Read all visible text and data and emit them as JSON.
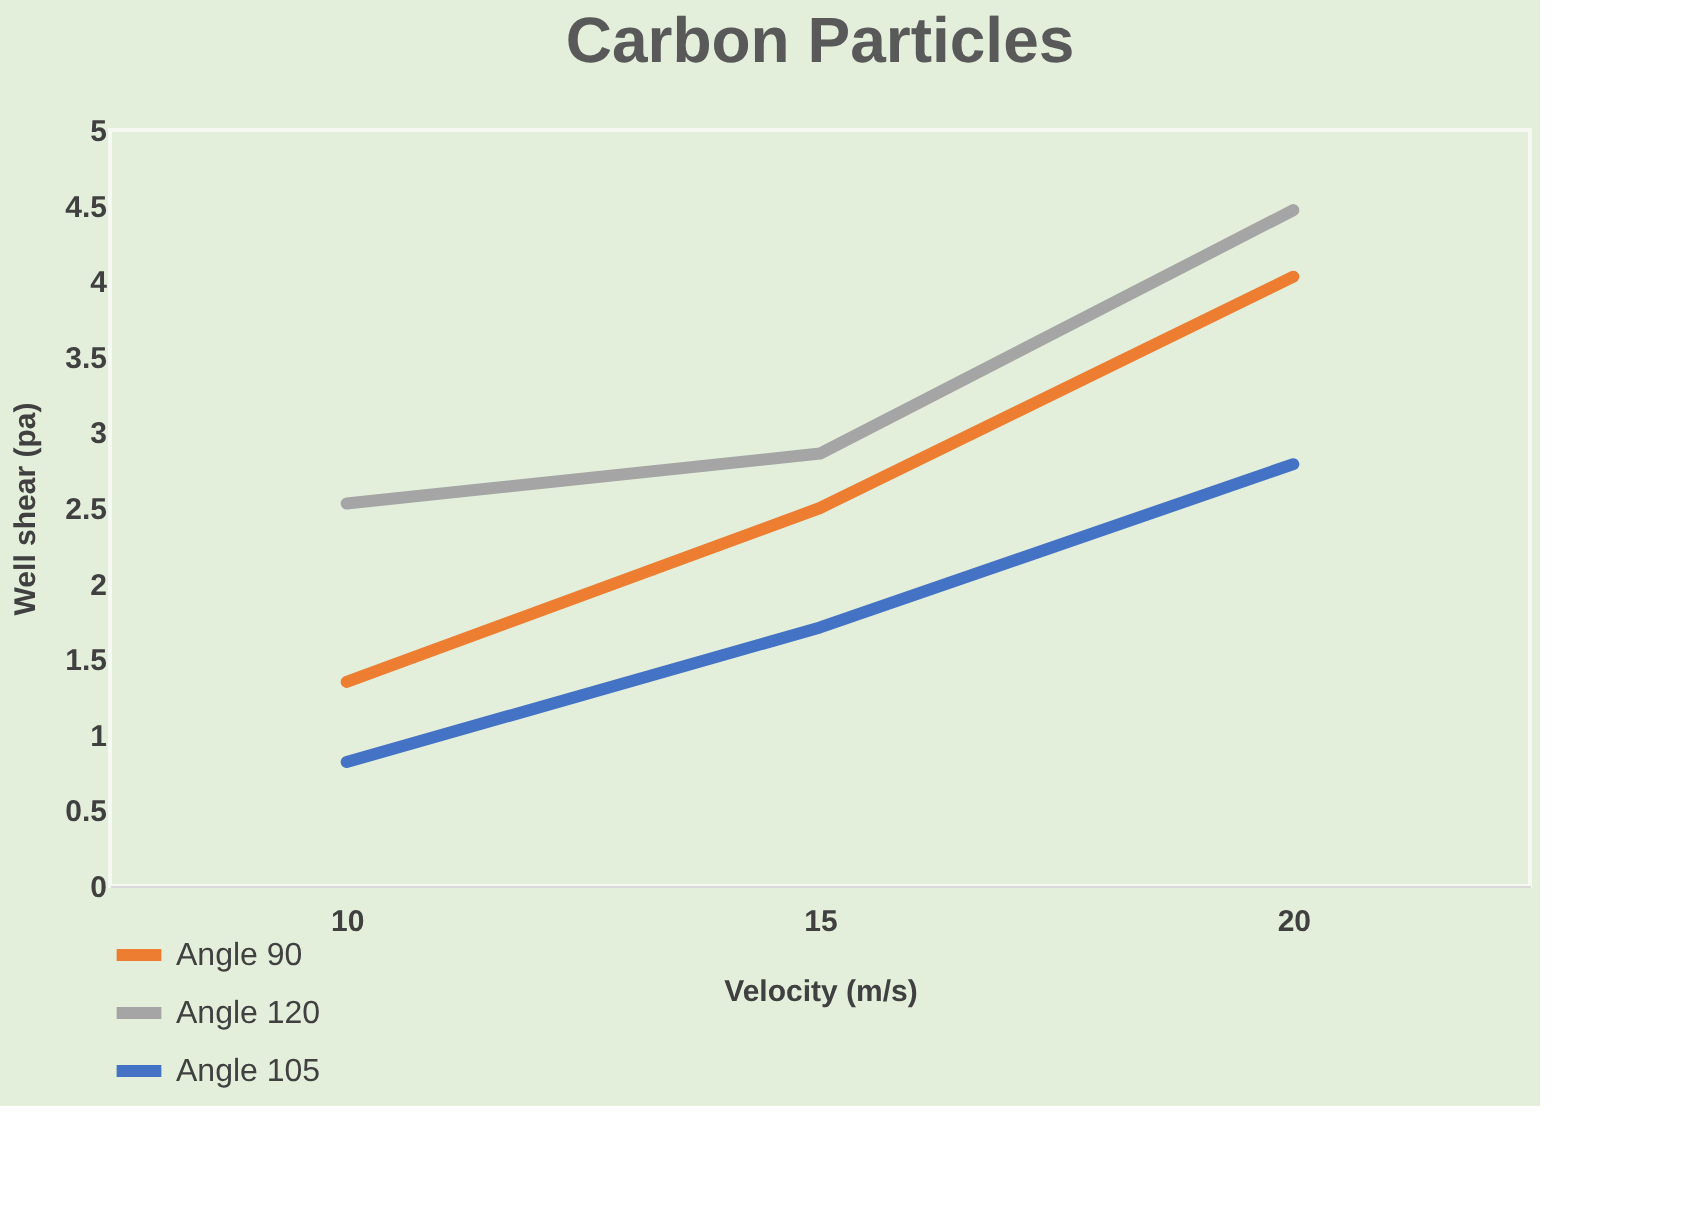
{
  "chart_data": {
    "type": "line",
    "title": "Carbon Particles",
    "xlabel": "Velocity (m/s)",
    "ylabel": "Well shear (pa)",
    "categories": [
      "10",
      "15",
      "20"
    ],
    "series": [
      {
        "name": "Angle 90",
        "color": "#ed7d31",
        "values": [
          1.35,
          2.5,
          4.03
        ]
      },
      {
        "name": "Angle 120",
        "color": "#a5a5a5",
        "values": [
          2.53,
          2.86,
          4.47
        ]
      },
      {
        "name": "Angle 105",
        "color": "#4472c4",
        "values": [
          0.82,
          1.71,
          2.79
        ]
      }
    ],
    "ylim": [
      0,
      5
    ],
    "yticks": [
      0,
      0.5,
      1,
      1.5,
      2,
      2.5,
      3,
      3.5,
      4,
      4.5,
      5
    ],
    "grid": false,
    "legend": "bottom left",
    "marker": "none",
    "line_style": "solid"
  }
}
